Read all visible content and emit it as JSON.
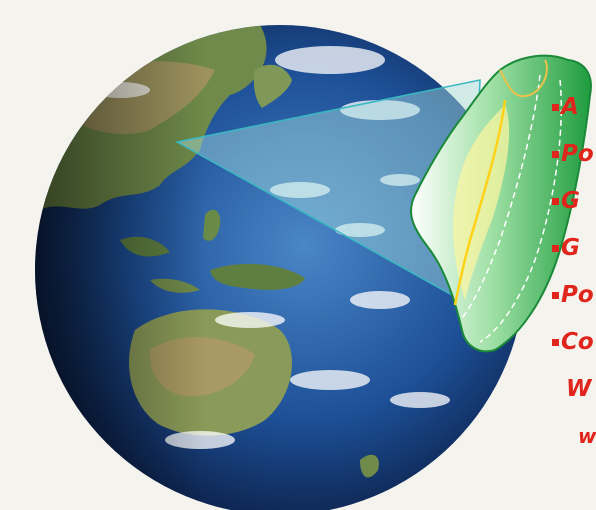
{
  "colors": {
    "background": "#f4f3ee",
    "ocean": "#1d4f96",
    "taiwan_fill": "#2aa84a",
    "text_red": "#e0261c",
    "triangle": "#8fd1d8"
  },
  "bullets": [
    {
      "text": "A",
      "marker": true
    },
    {
      "text": "Po",
      "marker": true
    },
    {
      "text": "G",
      "marker": true
    },
    {
      "text": "G",
      "marker": true
    },
    {
      "text": "Po",
      "marker": true
    },
    {
      "text": "Co",
      "marker": true
    },
    {
      "text": "W",
      "marker": false
    },
    {
      "text": "w",
      "marker": false
    }
  ]
}
